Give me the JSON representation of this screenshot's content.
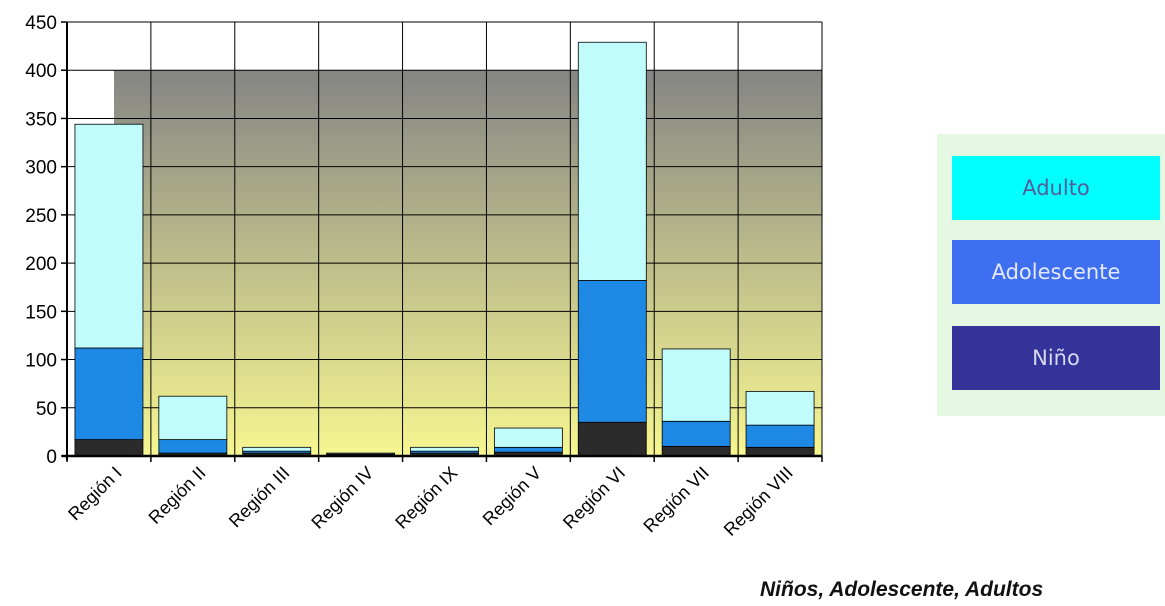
{
  "chart_data": {
    "type": "bar",
    "stacked": true,
    "categories": [
      "Región I",
      "Región II",
      "Región III",
      "Región IV",
      "Región IX",
      "Región V",
      "Región VI",
      "Región VII",
      "Región VIII"
    ],
    "series": [
      {
        "name": "Niño",
        "color": "#2b2b2b",
        "values": [
          17,
          3,
          3,
          1,
          3,
          4,
          35,
          10,
          9
        ]
      },
      {
        "name": "Adolescente",
        "color": "#1e88e5",
        "values": [
          95,
          14,
          2,
          1,
          2,
          5,
          147,
          26,
          23
        ]
      },
      {
        "name": "Adulto",
        "color": "#c0fcfc",
        "values": [
          232,
          45,
          4,
          1,
          4,
          20,
          247,
          75,
          35
        ]
      }
    ],
    "ylim": [
      0,
      450
    ],
    "yticks": [
      0,
      50,
      100,
      150,
      200,
      250,
      300,
      350,
      400,
      450
    ],
    "grid": true,
    "legend_position": "right",
    "legend_order": [
      "Adulto",
      "Adolescente",
      "Niño"
    ]
  },
  "caption": "Niños, Adolescente, Adultos"
}
